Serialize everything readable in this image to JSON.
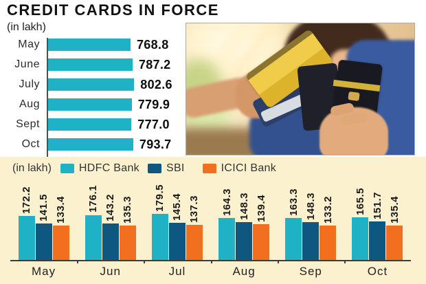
{
  "title": "CREDIT CARDS IN FORCE",
  "colors": {
    "cyan": "#1fb2c7",
    "navy": "#0e5781",
    "orange": "#f26f1f",
    "panel_bg": "#fcf1cf",
    "axis": "#3c3c3c"
  },
  "photo": {
    "description": "person holding fanned credit cards"
  },
  "chart_data": [
    {
      "type": "bar",
      "orientation": "horizontal",
      "unit_label": "(in lakh)",
      "categories": [
        "May",
        "June",
        "July",
        "Aug",
        "Sept",
        "Oct"
      ],
      "values": [
        768.8,
        787.2,
        802.6,
        779.9,
        777.0,
        793.7
      ],
      "value_labels": [
        "768.8",
        "787.2",
        "802.6",
        "779.9",
        "777.0",
        "793.7"
      ],
      "bar_color": "#1fb2c7",
      "xlim": [
        0,
        820
      ],
      "grid": false,
      "legend_position": "none"
    },
    {
      "type": "bar",
      "orientation": "vertical",
      "grouped": true,
      "unit_label": "(in lakh)",
      "categories": [
        "May",
        "Jun",
        "Jul",
        "Aug",
        "Sep",
        "Oct"
      ],
      "series": [
        {
          "name": "HDFC Bank",
          "color": "#1fb2c7",
          "values": [
            172.2,
            176.1,
            179.5,
            164.3,
            163.3,
            165.5
          ]
        },
        {
          "name": "SBI",
          "color": "#0e5781",
          "values": [
            141.5,
            143.2,
            145.4,
            148.3,
            148.3,
            151.7
          ]
        },
        {
          "name": "ICICI Bank",
          "color": "#f26f1f",
          "values": [
            133.4,
            135.3,
            137.3,
            139.4,
            133.2,
            135.4
          ]
        }
      ],
      "ylim": [
        0,
        190
      ],
      "grid": false,
      "legend_position": "top-left",
      "value_label_style": "rotated-90"
    }
  ]
}
